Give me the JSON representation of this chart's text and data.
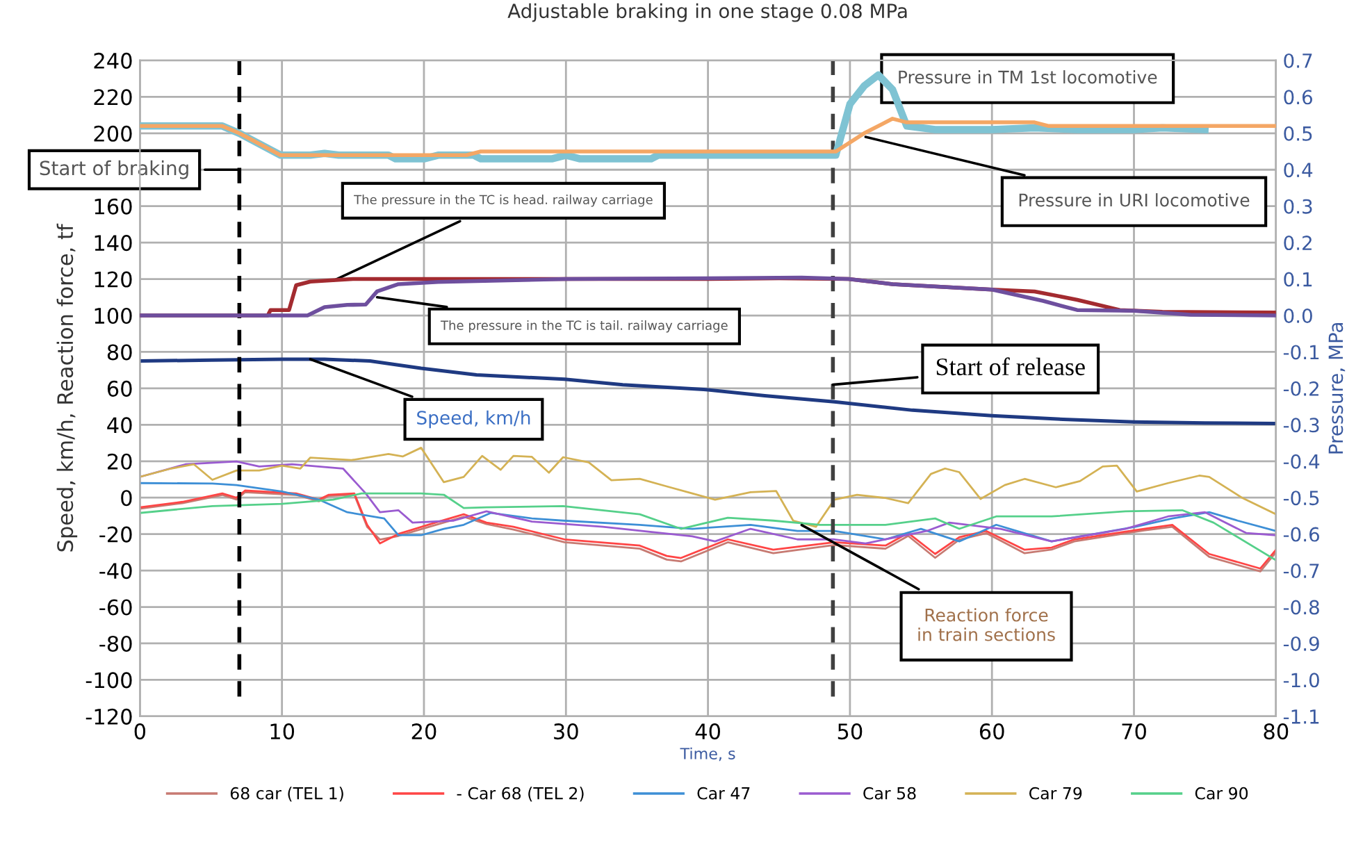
{
  "chart_data": {
    "type": "line",
    "title": "Adjustable braking in one stage 0.08 MPa",
    "xlabel": "Time, s",
    "ylabel": "Speed, km/h, Reaction force, tf",
    "y2label": "Pressure, MPa",
    "xlim": [
      0,
      80
    ],
    "xticks": [
      0,
      10,
      20,
      30,
      40,
      50,
      60,
      70,
      80
    ],
    "ylim": [
      -120,
      240
    ],
    "yticks": [
      -120,
      -100,
      -80,
      -60,
      -40,
      -20,
      0,
      20,
      40,
      60,
      80,
      100,
      120,
      140,
      160,
      {
        "value": 180,
        "label": null
      },
      200,
      220,
      240
    ],
    "y2lim": [
      -1.1,
      0.7
    ],
    "y2ticks": [
      -1.1,
      {
        "value": -1.0,
        "label": "-1.0"
      },
      -0.9,
      -0.8,
      -0.7,
      -0.6,
      -0.5,
      -0.4,
      -0.3,
      -0.2,
      -0.1,
      {
        "value": 0.0,
        "label": "0.0"
      },
      0.1,
      0.2,
      0.3,
      0.4,
      0.5,
      0.6,
      0.7
    ],
    "grid": true,
    "legend": "bottom",
    "series": [
      {
        "axis": "y2",
        "color": "#7fc3d3",
        "x": [
          0,
          5.8,
          7,
          9.9,
          12,
          13,
          14,
          17.5,
          18,
          20,
          21,
          23.5,
          24,
          29,
          30,
          31,
          31.5,
          36,
          36.5,
          40,
          45,
          49,
          50,
          51,
          52,
          53,
          54,
          56,
          60,
          63,
          66,
          68,
          70,
          72,
          75
        ],
        "values": [
          0.52,
          0.52,
          0.5,
          0.44,
          0.44,
          0.445,
          0.44,
          0.44,
          0.43,
          0.43,
          0.44,
          0.44,
          0.43,
          0.43,
          0.44,
          0.43,
          0.43,
          0.43,
          0.44,
          0.44,
          0.44,
          0.44,
          0.58,
          0.63,
          0.66,
          0.62,
          0.52,
          0.51,
          0.51,
          0.515,
          0.51,
          0.51,
          0.51,
          0.515,
          0.51
        ]
      },
      {
        "axis": "y2",
        "color": "#f4a765",
        "x": [
          0,
          5.8,
          7,
          9.9,
          12,
          23,
          24,
          30,
          40,
          49,
          51,
          53,
          54,
          58,
          63,
          64,
          70,
          80
        ],
        "values": [
          0.52,
          0.52,
          0.5,
          0.44,
          0.44,
          0.44,
          0.45,
          0.45,
          0.45,
          0.45,
          0.5,
          0.54,
          0.53,
          0.53,
          0.53,
          0.52,
          0.52,
          0.52
        ]
      },
      {
        "axis": "y2",
        "color": "#a32b30",
        "x": [
          0,
          9,
          9.2,
          10.5,
          11,
          12,
          15,
          20,
          30,
          40,
          45,
          49.9,
          53,
          60,
          63,
          66,
          69,
          72,
          80
        ],
        "values": [
          0.0,
          0.0,
          0.015,
          0.015,
          0.083,
          0.093,
          0.1,
          0.1,
          0.1,
          0.1,
          0.102,
          0.1,
          0.086,
          0.071,
          0.066,
          0.043,
          0.015,
          0.01,
          0.008
        ]
      },
      {
        "axis": "y2",
        "color": "#6e4f9e",
        "x": [
          0,
          11.8,
          13,
          14.6,
          15.9,
          16.7,
          18.2,
          21,
          30,
          40,
          46.6,
          49.9,
          53,
          60,
          63.6,
          66,
          70,
          74,
          80
        ],
        "values": [
          0.0,
          0.0,
          0.023,
          0.029,
          0.03,
          0.066,
          0.086,
          0.092,
          0.1,
          0.102,
          0.104,
          0.1,
          0.086,
          0.071,
          0.04,
          0.015,
          0.013,
          0.002,
          0.0
        ]
      },
      {
        "color": "#1f3a82",
        "x": [
          0,
          5,
          10,
          13,
          16.2,
          19.8,
          23.7,
          29.9,
          34,
          39.7,
          44,
          48.9,
          54.4,
          60,
          65,
          70,
          75,
          80
        ],
        "values": [
          75,
          75.5,
          76,
          76,
          75,
          71,
          67.4,
          65,
          62,
          59.4,
          56,
          52.6,
          48,
          45,
          43,
          41.6,
          41,
          40.7
        ]
      },
      {
        "name": "68 car (TEL 1)",
        "color": "#c77a72",
        "x": [
          0,
          3,
          5.8,
          6.8,
          7.4,
          11,
          12.6,
          13.3,
          15.1,
          16,
          16.9,
          18.2,
          20.8,
          22.8,
          24.4,
          26.3,
          29.9,
          35.2,
          37.1,
          38.1,
          41.4,
          44.6,
          48.9,
          52.5,
          54.1,
          56,
          57.7,
          59.6,
          62.3,
          64.2,
          65.8,
          70.7,
          72.7,
          75.3,
          78.9,
          80
        ],
        "values": [
          -6,
          -3,
          1.5,
          -1,
          3,
          1.5,
          -2,
          1,
          1.5,
          -16,
          -23,
          -21,
          -15,
          -10.5,
          -14.5,
          -17.5,
          -24.5,
          -28,
          -34,
          -35,
          -24.5,
          -30.5,
          -26,
          -28,
          -21,
          -33,
          -23,
          -19.5,
          -30.5,
          -28.5,
          -24,
          -18,
          -16,
          -32.5,
          -40.5,
          -30
        ]
      },
      {
        "name": "- Car 68 (TEL 2)",
        "color": "#ff4545",
        "x": [
          0,
          3,
          5.8,
          6.8,
          7.4,
          11,
          12.6,
          13.3,
          15.1,
          16,
          16.9,
          18.2,
          20.8,
          22.8,
          24.4,
          26.3,
          29.9,
          35.2,
          37.1,
          38.1,
          41.4,
          44.6,
          48.9,
          52.5,
          54.1,
          56,
          57.7,
          59.6,
          62.3,
          64.2,
          65.8,
          70.7,
          72.7,
          75.3,
          78.9,
          80
        ],
        "values": [
          -5.3,
          -2.3,
          2.3,
          0,
          3.9,
          2.3,
          -1.1,
          1.6,
          2.3,
          -14.9,
          -25.1,
          -19.9,
          -13.7,
          -9.1,
          -13.7,
          -16,
          -22.9,
          -26.3,
          -32,
          -33.1,
          -22.9,
          -28.6,
          -24.5,
          -26.3,
          -19.4,
          -30.9,
          -21.7,
          -18.3,
          -28.6,
          -27.4,
          -22.9,
          -17.1,
          -14.9,
          -30.9,
          -38.9,
          -28.6
        ]
      },
      {
        "name": "Car 47",
        "color": "#3d8fd6",
        "x": [
          0,
          5.1,
          6.8,
          10,
          12.6,
          14.6,
          17.2,
          18.2,
          19.8,
          21.4,
          22.8,
          24.7,
          27.6,
          29.8,
          35.2,
          38.9,
          43,
          46.3,
          48.9,
          52.5,
          55,
          57.7,
          60.3,
          64.2,
          70.1,
          72.7,
          75.3,
          77.3,
          80
        ],
        "values": [
          8,
          7.8,
          6.9,
          3.4,
          -1.1,
          -8,
          -11.4,
          -20.6,
          -20.6,
          -17.1,
          -14.9,
          -8.4,
          -11.4,
          -12.6,
          -14.9,
          -17.1,
          -14.9,
          -18.3,
          -18.3,
          -22.9,
          -17.1,
          -24,
          -14.9,
          -24,
          -16,
          -11.4,
          -8,
          -12.6,
          -18.3
        ]
      },
      {
        "name": "Car 58",
        "color": "#9a5bd0",
        "x": [
          0,
          3.2,
          6.8,
          8.4,
          10.7,
          14.3,
          15.9,
          16.9,
          18.2,
          19.2,
          22.1,
          24.4,
          27.6,
          32.6,
          38.9,
          40.5,
          43,
          46.3,
          48.9,
          51.1,
          55.4,
          57,
          60.6,
          64.2,
          69.4,
          72.4,
          75,
          77.9,
          80
        ],
        "values": [
          11.4,
          18.3,
          19.9,
          17.1,
          18.3,
          16,
          2.3,
          -8,
          -6.9,
          -13.7,
          -12.6,
          -7.5,
          -13.1,
          -16,
          -21.2,
          -24,
          -17.1,
          -22.9,
          -22.9,
          -25.1,
          -18.3,
          -13.7,
          -17.1,
          -24,
          -17.1,
          -10.3,
          -8,
          -19.4,
          -20.6
        ]
      },
      {
        "name": "Car 79",
        "color": "#d4b254",
        "x": [
          0,
          2.2,
          3.8,
          5.1,
          6.8,
          8.4,
          10,
          11.3,
          12,
          14.9,
          17.5,
          18.5,
          19.8,
          21.4,
          22.8,
          24.1,
          25.4,
          26.3,
          27.6,
          28.8,
          29.8,
          31.6,
          33.2,
          35.2,
          37.1,
          38.9,
          40.5,
          43,
          44.8,
          46,
          47.6,
          48.9,
          50.5,
          52.5,
          54.1,
          55.7,
          56.7,
          57.7,
          59.2,
          60.9,
          62.3,
          64.5,
          66.2,
          67.8,
          68.8,
          70.2,
          72.4,
          74.6,
          75.3,
          77.6,
          80
        ],
        "values": [
          11.4,
          16,
          18.3,
          9.8,
          14.9,
          14.9,
          17.6,
          16,
          22,
          20.6,
          24,
          22.6,
          27.4,
          8.5,
          11.4,
          22.9,
          15.3,
          22.9,
          22.4,
          13.7,
          22.2,
          19.4,
          9.6,
          10.3,
          6.2,
          2.3,
          -1.1,
          3,
          3.7,
          -12.6,
          -16,
          -1.1,
          1.6,
          -0.2,
          -3,
          13,
          16,
          14,
          -0.7,
          6.9,
          10.3,
          5.7,
          9.1,
          17.1,
          17.6,
          3.4,
          8,
          12.1,
          11.4,
          0,
          -9.1
        ]
      },
      {
        "name": "Car 90",
        "color": "#55d08a",
        "x": [
          0,
          5.1,
          10,
          13.6,
          15.6,
          19.8,
          21.4,
          22.8,
          24.4,
          29.8,
          35.2,
          38.1,
          41.4,
          44.6,
          47.9,
          52.5,
          56,
          57.7,
          60.3,
          64.2,
          69.4,
          73.4,
          75.6,
          80
        ],
        "values": [
          -8.4,
          -4.6,
          -3.4,
          -1.1,
          2.3,
          2.3,
          1.6,
          -5.7,
          -5.3,
          -4.6,
          -9.1,
          -17.1,
          -11,
          -12.6,
          -14.9,
          -14.9,
          -11.4,
          -17.1,
          -10.3,
          -10.3,
          -7.5,
          -6.9,
          -13.7,
          -34.3
        ]
      }
    ],
    "ref_lines": [
      {
        "axis": "x",
        "value": 7,
        "label": "Start of braking",
        "color": "#000000",
        "line_style": "dashed"
      },
      {
        "axis": "x",
        "value": 48.8,
        "label": "Start of release",
        "color": "#404040",
        "line_style": "dashed"
      }
    ],
    "annotations": [
      {
        "text": "Pressure in TM 1st locomotive",
        "x": 53,
        "y": 224
      },
      {
        "text": "Pressure in URI locomotive",
        "x": 51.1,
        "y": 198
      },
      {
        "text": "The pressure in the TC is head. railway carriage",
        "x": 13.6,
        "y": 119
      },
      {
        "text": "The pressure in the TC is tail. railway carriage",
        "x": 16.7,
        "y": 110
      },
      {
        "text": "Speed, km/h",
        "x": 12,
        "y": 76
      },
      {
        "text": "Reaction force\nin train sections",
        "x": 46.6,
        "y": -15
      }
    ]
  }
}
